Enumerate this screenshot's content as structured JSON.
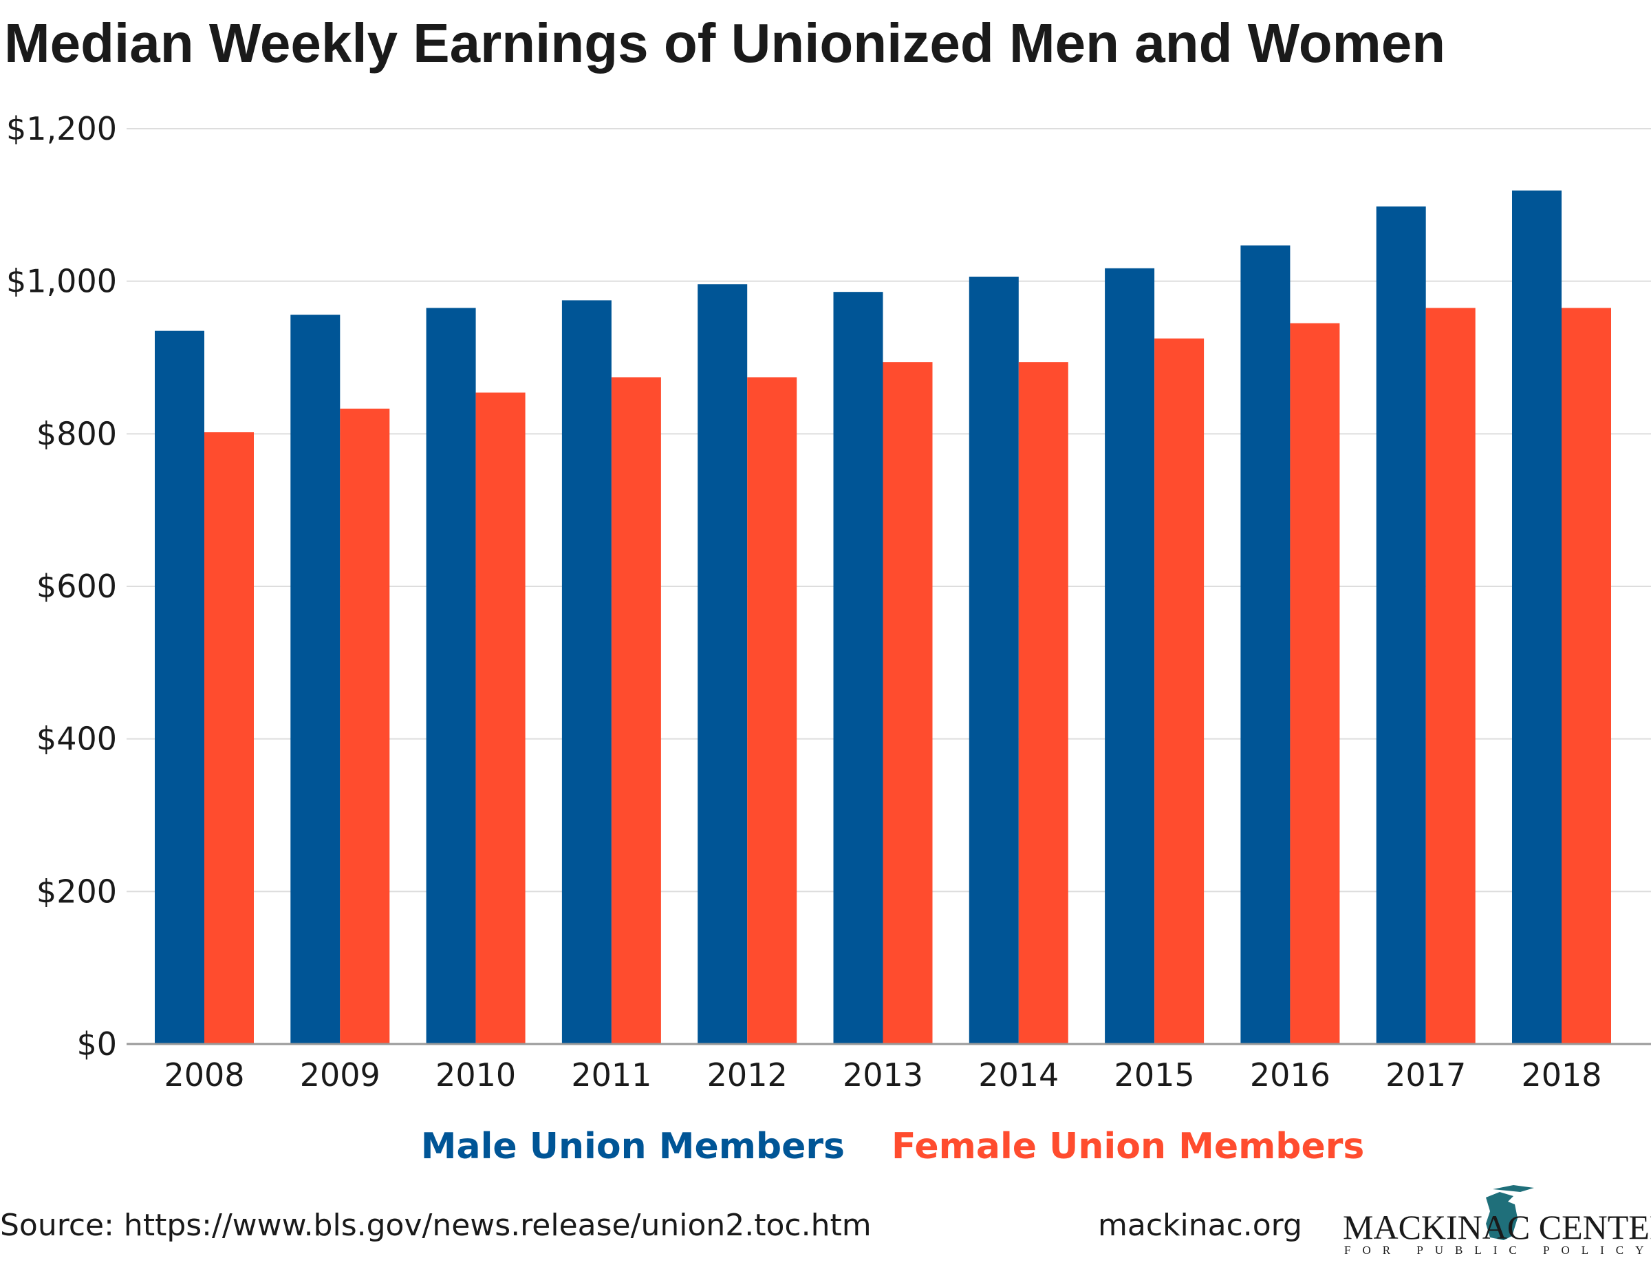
{
  "chart_data": {
    "type": "bar",
    "title": "Median Weekly Earnings of Unionized Men and Women",
    "categories": [
      "2008",
      "2009",
      "2010",
      "2011",
      "2012",
      "2013",
      "2014",
      "2015",
      "2016",
      "2017",
      "2018"
    ],
    "series": [
      {
        "name": "Male Union Members",
        "color": "#005596",
        "values": [
          935,
          956,
          965,
          975,
          996,
          986,
          1006,
          1017,
          1047,
          1098,
          1119
        ]
      },
      {
        "name": "Female Union Members",
        "color": "#FF4C2E",
        "values": [
          802,
          833,
          854,
          874,
          874,
          894,
          894,
          925,
          945,
          965,
          965
        ]
      }
    ],
    "yticks": [
      0,
      200,
      400,
      600,
      800,
      1000,
      1200
    ],
    "ytick_labels": [
      "$0",
      "$200",
      "$400",
      "$600",
      "$800",
      "$1,000",
      "$1,200"
    ],
    "ylim": [
      0,
      1200
    ],
    "xlabel": "",
    "ylabel": "",
    "grid": true,
    "legend_position": "bottom-center"
  },
  "footer": {
    "source": "Source: https://www.bls.gov/news.release/union2.toc.htm",
    "website": "mackinac.org",
    "logo_text": "MACKINAC CENTER",
    "logo_subtext": "FOR PUBLIC POLICY"
  }
}
